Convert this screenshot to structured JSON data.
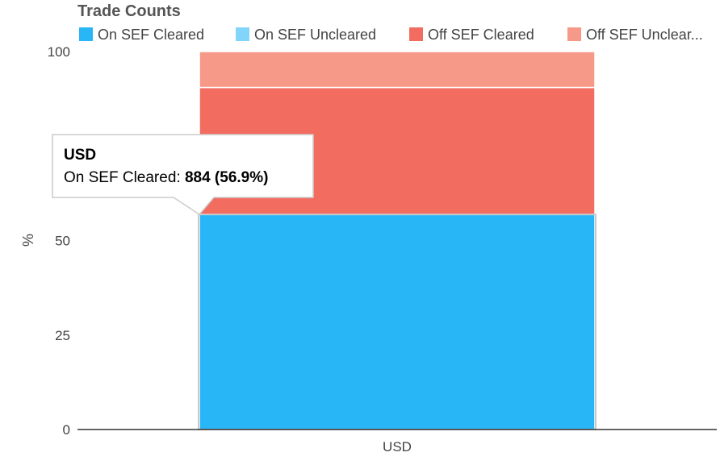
{
  "chart_data": {
    "type": "bar",
    "stacked": "percent",
    "title": "Trade Counts",
    "categories": [
      "USD"
    ],
    "ylabel": "%",
    "ylim": [
      0,
      100
    ],
    "yticks": [
      "0",
      "25",
      "50",
      "100"
    ],
    "ytick_values": [
      0,
      25,
      50,
      100
    ],
    "series": [
      {
        "name": "On SEF Cleared",
        "color": "#29b6f6",
        "values": [
          56.9
        ]
      },
      {
        "name": "On SEF Uncleared",
        "color": "#81d4fa",
        "values": [
          0
        ]
      },
      {
        "name": "Off SEF Cleared",
        "color": "#f36c60",
        "values": [
          33.6
        ]
      },
      {
        "name": "Off SEF Unclear...",
        "color": "#f69988",
        "values": [
          9.5
        ]
      }
    ],
    "legend_position": "top",
    "tooltip": {
      "title": "USD",
      "label": "On SEF Cleared: ",
      "value": "884 (56.9%)"
    }
  }
}
